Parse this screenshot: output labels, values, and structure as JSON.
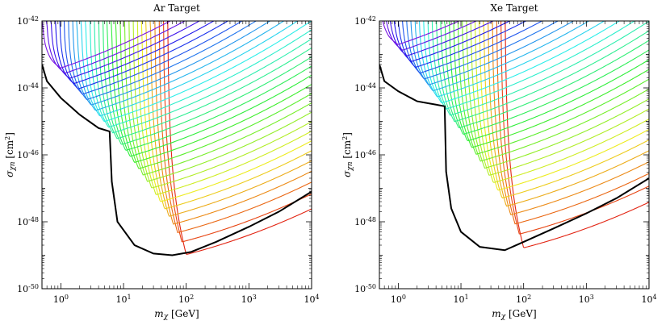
{
  "chart_data": [
    {
      "type": "line",
      "title": "Ar Target",
      "xlabel": "m_χ [GeV]",
      "ylabel": "σ_χn [cm²]",
      "xscale": "log",
      "yscale": "log",
      "xlim": [
        0.5,
        10000
      ],
      "ylim": [
        1e-50,
        1e-42
      ],
      "x_ticks": [
        "10^0",
        "10^1",
        "10^2",
        "10^3",
        "10^4"
      ],
      "y_ticks": [
        "10^-50",
        "10^-48",
        "10^-46",
        "10^-44",
        "10^-42"
      ],
      "envelope": {
        "color": "#000000",
        "x": [
          0.5,
          0.6,
          1,
          2,
          4,
          6,
          6.5,
          8,
          15,
          30,
          60,
          120,
          300,
          1000,
          3000,
          10000
        ],
        "y": [
          -43.3,
          -43.8,
          -44.3,
          -44.8,
          -45.2,
          -45.3,
          -46.8,
          -48.0,
          -48.7,
          -48.95,
          -49.0,
          -48.9,
          -48.6,
          -48.15,
          -47.7,
          -47.1
        ]
      },
      "family_count": 30,
      "family": {
        "threshold_gev": {
          "min": 0.5,
          "max": 50
        },
        "cutoff_high": -42.0,
        "cutoff_low": -45.3,
        "floor_high": -43.5,
        "floor_low": -49.05
      },
      "color_scale": "rainbow (red → violet)"
    },
    {
      "type": "line",
      "title": "Xe Target",
      "xlabel": "m_χ [GeV]",
      "ylabel": "σ_χn [cm²]",
      "xscale": "log",
      "yscale": "log",
      "xlim": [
        0.5,
        10000
      ],
      "ylim": [
        1e-50,
        1e-42
      ],
      "x_ticks": [
        "10^0",
        "10^1",
        "10^2",
        "10^3",
        "10^4"
      ],
      "y_ticks": [
        "10^-50",
        "10^-48",
        "10^-46",
        "10^-44",
        "10^-42"
      ],
      "envelope": {
        "color": "#000000",
        "x": [
          0.5,
          0.6,
          1,
          2,
          4,
          5.5,
          5.8,
          7,
          10,
          20,
          50,
          100,
          300,
          1000,
          3000,
          10000
        ],
        "y": [
          -43.3,
          -43.8,
          -44.1,
          -44.4,
          -44.5,
          -44.55,
          -46.5,
          -47.6,
          -48.3,
          -48.75,
          -48.85,
          -48.6,
          -48.2,
          -47.75,
          -47.3,
          -46.7
        ]
      },
      "family_count": 30,
      "family": {
        "threshold_gev": {
          "min": 0.5,
          "max": 50
        },
        "cutoff_high": -42.2,
        "cutoff_low": -44.6,
        "floor_high": -42.8,
        "floor_low": -48.85
      },
      "color_scale": "rainbow (red → violet)"
    }
  ],
  "panels": [
    {
      "title": "Ar Target",
      "xlabel_main": "m",
      "xlabel_sub": "χ",
      "xlabel_unit": " [GeV]",
      "ylabel_main": "σ",
      "ylabel_sub": "χn",
      "ylabel_unit": " [cm",
      "ylabel_sup": "2",
      "ylabel_close": "]"
    },
    {
      "title": "Xe Target",
      "xlabel_main": "m",
      "xlabel_sub": "χ",
      "xlabel_unit": " [GeV]",
      "ylabel_main": "σ",
      "ylabel_sub": "χn",
      "ylabel_unit": " [cm",
      "ylabel_sup": "2",
      "ylabel_close": "]"
    }
  ]
}
